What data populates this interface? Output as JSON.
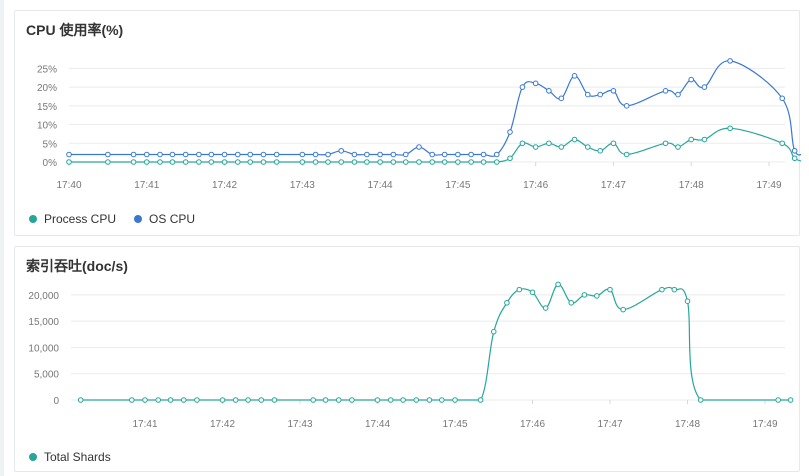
{
  "colors": {
    "process_cpu": "#26a69a",
    "os_cpu": "#3b78d0",
    "total_shards": "#26a69a",
    "grid": "#e9ebee",
    "axis_text": "#777777"
  },
  "chart_data": [
    {
      "type": "line",
      "title": "CPU 使用率(%)",
      "x_ticks": [
        "17:40",
        "17:41",
        "17:42",
        "17:43",
        "17:44",
        "17:45",
        "17:46",
        "17:47",
        "17:48",
        "17:49"
      ],
      "y_ticks": [
        "25%",
        "20%",
        "15%",
        "10%",
        "5%",
        "0%"
      ],
      "ylim": [
        0,
        27.5
      ],
      "x_unit": "minutes after 17:40",
      "series": [
        {
          "name": "Process CPU",
          "color": "#26a69a",
          "x": [
            0,
            0.5,
            0.83,
            1,
            1.17,
            1.33,
            1.5,
            1.67,
            1.83,
            2,
            2.17,
            2.33,
            2.5,
            2.67,
            3,
            3.17,
            3.33,
            3.5,
            3.67,
            3.83,
            4,
            4.17,
            4.33,
            4.5,
            4.67,
            4.83,
            5,
            5.17,
            5.33,
            5.5,
            5.67,
            5.83,
            6,
            6.17,
            6.33,
            6.5,
            6.67,
            6.83,
            7,
            7.17,
            7.67,
            7.83,
            8,
            8.17,
            8.5,
            9.17,
            9.33,
            9.48
          ],
          "values": [
            0,
            0,
            0,
            0,
            0,
            0,
            0,
            0,
            0,
            0,
            0,
            0,
            0,
            0,
            0,
            0,
            0,
            0,
            0,
            0,
            0,
            0,
            0,
            0,
            0,
            0,
            0,
            0,
            0,
            0,
            1,
            5,
            4,
            5,
            4,
            6,
            4,
            3,
            5,
            2,
            5,
            4,
            6,
            6,
            9,
            5,
            1,
            0
          ]
        },
        {
          "name": "OS CPU",
          "color": "#3b78d0",
          "x": [
            0,
            0.5,
            0.83,
            1,
            1.17,
            1.33,
            1.5,
            1.67,
            1.83,
            2,
            2.17,
            2.33,
            2.5,
            2.67,
            3,
            3.17,
            3.33,
            3.5,
            3.67,
            3.83,
            4,
            4.17,
            4.33,
            4.5,
            4.67,
            4.83,
            5,
            5.17,
            5.33,
            5.5,
            5.67,
            5.83,
            6,
            6.17,
            6.33,
            6.5,
            6.67,
            6.83,
            7,
            7.17,
            7.67,
            7.83,
            8,
            8.17,
            8.5,
            9.17,
            9.33,
            9.48
          ],
          "values": [
            2,
            2,
            2,
            2,
            2,
            2,
            2,
            2,
            2,
            2,
            2,
            2,
            2,
            2,
            2,
            2,
            2,
            3,
            2,
            2,
            2,
            2,
            2,
            4,
            2,
            2,
            2,
            2,
            2,
            2,
            8,
            20,
            21,
            19,
            17,
            23,
            18,
            18,
            19,
            15,
            19,
            18,
            22,
            20,
            27,
            17,
            3,
            3
          ]
        }
      ]
    },
    {
      "type": "line",
      "title": "索引吞吐(doc/s)",
      "x_ticks": [
        "17:41",
        "17:42",
        "17:43",
        "17:44",
        "17:45",
        "17:46",
        "17:47",
        "17:48",
        "17:49"
      ],
      "y_ticks": [
        "20,000",
        "15,000",
        "10,000",
        "5,000",
        "0"
      ],
      "ylim": [
        0,
        21500
      ],
      "x_unit": "minutes after 17:40",
      "series": [
        {
          "name": "Total Shards",
          "color": "#26a69a",
          "x": [
            0.17,
            0.83,
            1,
            1.17,
            1.33,
            1.5,
            1.67,
            2,
            2.17,
            2.33,
            2.5,
            2.67,
            3.17,
            3.33,
            3.5,
            3.67,
            4,
            4.17,
            4.33,
            4.5,
            4.67,
            4.83,
            5,
            5.33,
            5.5,
            5.67,
            5.83,
            6,
            6.17,
            6.33,
            6.5,
            6.67,
            6.83,
            7,
            7.17,
            7.67,
            7.83,
            8,
            8.17,
            9.17,
            9.33
          ],
          "values": [
            0,
            0,
            0,
            0,
            0,
            0,
            0,
            0,
            0,
            0,
            0,
            0,
            0,
            0,
            0,
            0,
            0,
            0,
            0,
            0,
            0,
            0,
            0,
            0,
            13000,
            18500,
            21000,
            20500,
            17500,
            22000,
            18500,
            20000,
            19800,
            21000,
            17200,
            21000,
            21000,
            18800,
            0,
            0,
            0
          ]
        }
      ]
    }
  ]
}
